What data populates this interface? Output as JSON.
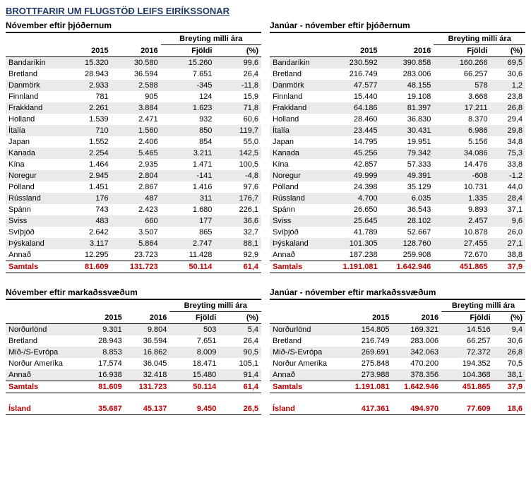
{
  "title": "BROTTFARIR UM FLUGSTÖÐ LEIFS EIRÍKSSONAR",
  "headers": {
    "breyting": "Breyting milli ára",
    "y2015": "2015",
    "y2016": "2016",
    "fjoldi": "Fjöldi",
    "pct": "(%)",
    "samtals": "Samtals",
    "island": "Ísland"
  },
  "sections": {
    "nov_nat": {
      "subtitle": "Nóvember eftir þjóðernum",
      "rows": [
        [
          "Bandaríkin",
          "15.320",
          "30.580",
          "15.260",
          "99,6"
        ],
        [
          "Bretland",
          "28.943",
          "36.594",
          "7.651",
          "26,4"
        ],
        [
          "Danmörk",
          "2.933",
          "2.588",
          "-345",
          "-11,8"
        ],
        [
          "Finnland",
          "781",
          "905",
          "124",
          "15,9"
        ],
        [
          "Frakkland",
          "2.261",
          "3.884",
          "1.623",
          "71,8"
        ],
        [
          "Holland",
          "1.539",
          "2.471",
          "932",
          "60,6"
        ],
        [
          "Ítalía",
          "710",
          "1.560",
          "850",
          "119,7"
        ],
        [
          "Japan",
          "1.552",
          "2.406",
          "854",
          "55,0"
        ],
        [
          "Kanada",
          "2.254",
          "5.465",
          "3.211",
          "142,5"
        ],
        [
          "Kína",
          "1.464",
          "2.935",
          "1.471",
          "100,5"
        ],
        [
          "Noregur",
          "2.945",
          "2.804",
          "-141",
          "-4,8"
        ],
        [
          "Pólland",
          "1.451",
          "2.867",
          "1.416",
          "97,6"
        ],
        [
          "Rússland",
          "176",
          "487",
          "311",
          "176,7"
        ],
        [
          "Spánn",
          "743",
          "2.423",
          "1.680",
          "226,1"
        ],
        [
          "Sviss",
          "483",
          "660",
          "177",
          "36,6"
        ],
        [
          "Svíþjóð",
          "2.642",
          "3.507",
          "865",
          "32,7"
        ],
        [
          "Þýskaland",
          "3.117",
          "5.864",
          "2.747",
          "88,1"
        ],
        [
          "Annað",
          "12.295",
          "23.723",
          "11.428",
          "92,9"
        ]
      ],
      "samtals": [
        "81.609",
        "131.723",
        "50.114",
        "61,4"
      ]
    },
    "ytd_nat": {
      "subtitle": "Janúar - nóvember eftir þjóðernum",
      "rows": [
        [
          "Bandaríkin",
          "230.592",
          "390.858",
          "160.266",
          "69,5"
        ],
        [
          "Bretland",
          "216.749",
          "283.006",
          "66.257",
          "30,6"
        ],
        [
          "Danmörk",
          "47.577",
          "48.155",
          "578",
          "1,2"
        ],
        [
          "Finnland",
          "15.440",
          "19.108",
          "3.668",
          "23,8"
        ],
        [
          "Frakkland",
          "64.186",
          "81.397",
          "17.211",
          "26,8"
        ],
        [
          "Holland",
          "28.460",
          "36.830",
          "8.370",
          "29,4"
        ],
        [
          "Ítalía",
          "23.445",
          "30.431",
          "6.986",
          "29,8"
        ],
        [
          "Japan",
          "14.795",
          "19.951",
          "5.156",
          "34,8"
        ],
        [
          "Kanada",
          "45.256",
          "79.342",
          "34.086",
          "75,3"
        ],
        [
          "Kína",
          "42.857",
          "57.333",
          "14.476",
          "33,8"
        ],
        [
          "Noregur",
          "49.999",
          "49.391",
          "-608",
          "-1,2"
        ],
        [
          "Pólland",
          "24.398",
          "35.129",
          "10.731",
          "44,0"
        ],
        [
          "Rússland",
          "4.700",
          "6.035",
          "1.335",
          "28,4"
        ],
        [
          "Spánn",
          "26.650",
          "36.543",
          "9.893",
          "37,1"
        ],
        [
          "Sviss",
          "25.645",
          "28.102",
          "2.457",
          "9,6"
        ],
        [
          "Svíþjóð",
          "41.789",
          "52.667",
          "10.878",
          "26,0"
        ],
        [
          "Þýskaland",
          "101.305",
          "128.760",
          "27.455",
          "27,1"
        ],
        [
          "Annað",
          "187.238",
          "259.908",
          "72.670",
          "38,8"
        ]
      ],
      "samtals": [
        "1.191.081",
        "1.642.946",
        "451.865",
        "37,9"
      ]
    },
    "nov_mkt": {
      "subtitle": "Nóvember eftir markaðssvæðum",
      "rows": [
        [
          "Norðurlönd",
          "9.301",
          "9.804",
          "503",
          "5,4"
        ],
        [
          "Bretland",
          "28.943",
          "36.594",
          "7.651",
          "26,4"
        ],
        [
          "Mið-/S-Evrópa",
          "8.853",
          "16.862",
          "8.009",
          "90,5"
        ],
        [
          "Norður Ameríka",
          "17.574",
          "36.045",
          "18.471",
          "105,1"
        ],
        [
          "Annað",
          "16.938",
          "32.418",
          "15.480",
          "91,4"
        ]
      ],
      "samtals": [
        "81.609",
        "131.723",
        "50.114",
        "61,4"
      ],
      "island": [
        "35.687",
        "45.137",
        "9.450",
        "26,5"
      ]
    },
    "ytd_mkt": {
      "subtitle": "Janúar - nóvember eftir markaðssvæðum",
      "rows": [
        [
          "Norðurlönd",
          "154.805",
          "169.321",
          "14.516",
          "9,4"
        ],
        [
          "Bretland",
          "216.749",
          "283.006",
          "66.257",
          "30,6"
        ],
        [
          "Mið-/S-Evrópa",
          "269.691",
          "342.063",
          "72.372",
          "26,8"
        ],
        [
          "Norður Ameríka",
          "275.848",
          "470.200",
          "194.352",
          "70,5"
        ],
        [
          "Annað",
          "273.988",
          "378.356",
          "104.368",
          "38,1"
        ]
      ],
      "samtals": [
        "1.191.081",
        "1.642.946",
        "451.865",
        "37,9"
      ],
      "island": [
        "417.361",
        "494.970",
        "77.609",
        "18,6"
      ]
    }
  }
}
